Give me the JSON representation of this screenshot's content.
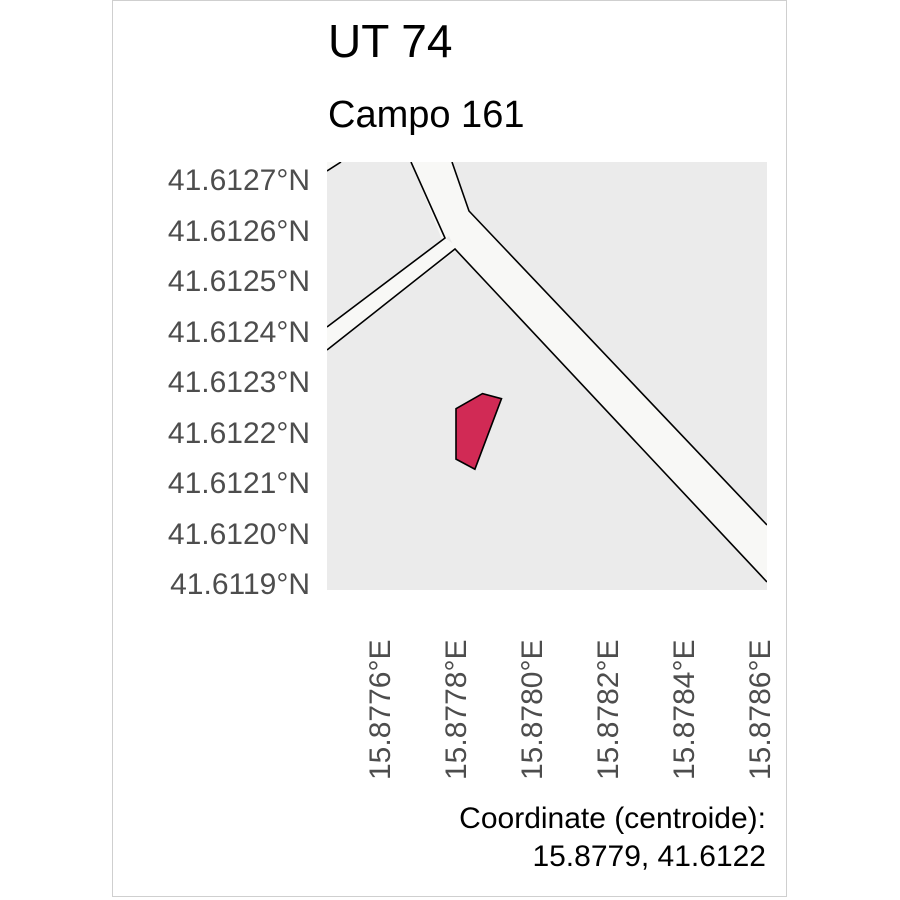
{
  "title": "UT 74",
  "subtitle": "Campo 161",
  "map": {
    "background_color": "#ebebeb",
    "road_color": "#f8f8f6",
    "parcel_color": "#d12a55",
    "y_ticks": [
      "41.6127°N",
      "41.6126°N",
      "41.6125°N",
      "41.6124°N",
      "41.6123°N",
      "41.6122°N",
      "41.6121°N",
      "41.6120°N",
      "41.6119°N"
    ],
    "x_ticks": [
      "15.8776°E",
      "15.8778°E",
      "15.8780°E",
      "15.8782°E",
      "15.8784°E",
      "15.8786°E"
    ],
    "x_range": [
      15.87749,
      15.87865
    ],
    "y_range": [
      41.61187,
      41.61272
    ],
    "parcel_vertices": [
      [
        15.87783,
        41.61223
      ],
      [
        15.8779,
        41.61226
      ],
      [
        15.87795,
        41.61225
      ],
      [
        15.87788,
        41.61211
      ],
      [
        15.87783,
        41.61213
      ]
    ]
  },
  "caption": {
    "line1": "Coordinate (centroide):",
    "line2": "15.8779, 41.6122"
  }
}
